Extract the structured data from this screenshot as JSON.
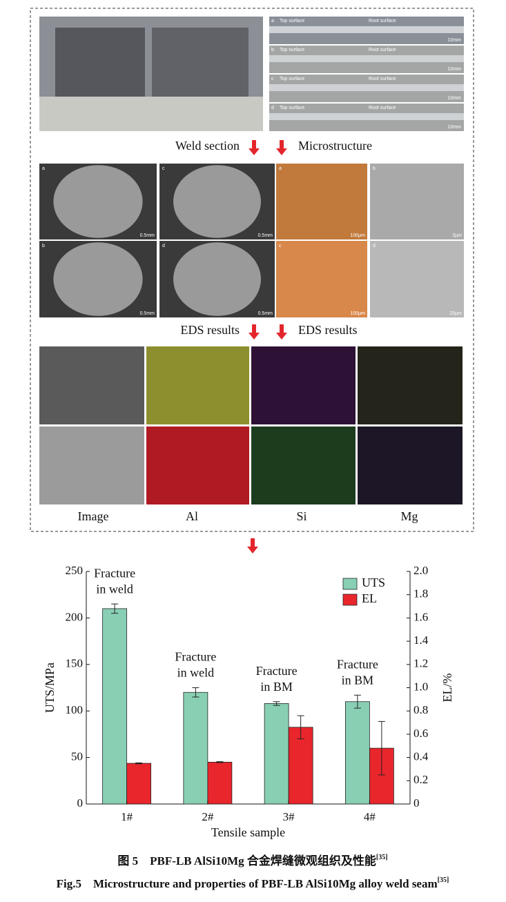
{
  "figure": {
    "strips": [
      {
        "label": "a",
        "left": "Top surface",
        "right": "Root surface",
        "scale": "10mm"
      },
      {
        "label": "b",
        "left": "Top surface",
        "right": "Root surface",
        "scale": "10mm"
      },
      {
        "label": "c",
        "left": "Top surface",
        "right": "Root surface",
        "scale": "10mm"
      },
      {
        "label": "d",
        "left": "Top surface",
        "right": "Root surface",
        "scale": "10mm"
      }
    ],
    "arrow_labels": [
      "Weld section",
      "Microstructure",
      "EDS results",
      "EDS results"
    ],
    "weld_panels": [
      {
        "label": "a",
        "scale": "0.5mm"
      },
      {
        "label": "b",
        "scale": "0.5mm"
      },
      {
        "label": "c",
        "scale": "0.5mm"
      },
      {
        "label": "d",
        "scale": "0.5mm"
      }
    ],
    "micro_panels": [
      {
        "label": "a",
        "scale": "100μm"
      },
      {
        "label": "b",
        "scale": "2μm"
      },
      {
        "label": "c",
        "scale": "100μm"
      },
      {
        "label": "d",
        "scale": "20μm"
      }
    ],
    "eds_columns": [
      "Image",
      "Al",
      "Si",
      "Mg"
    ],
    "caption_cn": "图 5　PBF-LB AlSi10Mg 合金焊缝微观组织及性能",
    "caption_cn_ref": "[35]",
    "caption_en": "Fig.5　Microstructure and properties of PBF-LB AlSi10Mg alloy weld seam",
    "caption_en_ref": "[35]"
  },
  "chart_data": {
    "type": "bar",
    "categories": [
      "1#",
      "2#",
      "3#",
      "4#"
    ],
    "annotations": [
      [
        "Fracture",
        "in weld"
      ],
      [
        "Fracture",
        "in weld"
      ],
      [
        "Fracture",
        "in BM"
      ],
      [
        "Fracture",
        "in BM"
      ]
    ],
    "series": [
      {
        "name": "UTS",
        "color": "#88cfb4",
        "values": [
          210,
          120,
          108,
          110
        ],
        "errors": [
          5,
          5,
          2,
          7
        ]
      },
      {
        "name": "EL",
        "color": "#e8262c",
        "axis": "y2",
        "values": [
          0.35,
          0.36,
          0.66,
          0.48
        ],
        "errors": [
          0.004,
          0.004,
          0.1,
          0.23
        ]
      }
    ],
    "xlabel": "Tensile sample",
    "ylabel": "UTS/MPa",
    "y2label": "EL/%",
    "ylim": [
      0,
      250
    ],
    "yticks": [
      0,
      50,
      100,
      150,
      200,
      250
    ],
    "y2lim": [
      0,
      2
    ],
    "y2ticks": [
      0,
      0.2,
      0.4,
      0.6,
      0.8,
      {
        "value": 1,
        "label": "1.0"
      },
      1.2,
      1.4,
      1.6,
      1.8,
      {
        "value": 2,
        "label": "2.0"
      }
    ],
    "legend": "upper right"
  }
}
